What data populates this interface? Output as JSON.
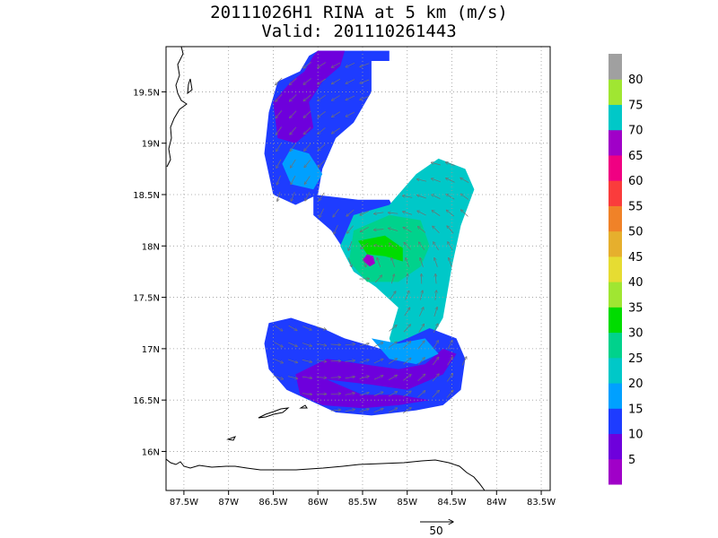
{
  "title_line_1": "20111026H1 RINA at 5 km (m/s)",
  "title_line_2": "Valid: 201110261443",
  "chart_data": {
    "type": "heatmap",
    "title": "20111026H1 RINA at 5 km (m/s)",
    "subtitle": "Valid: 201110261443",
    "x_ticks": [
      {
        "value": -87.5,
        "label": "87.5W"
      },
      {
        "value": -87.0,
        "label": "87W"
      },
      {
        "value": -86.5,
        "label": "86.5W"
      },
      {
        "value": -86.0,
        "label": "86W"
      },
      {
        "value": -85.5,
        "label": "85.5W"
      },
      {
        "value": -85.0,
        "label": "85W"
      },
      {
        "value": -84.5,
        "label": "84.5W"
      },
      {
        "value": -84.0,
        "label": "84W"
      },
      {
        "value": -83.5,
        "label": "83.5W"
      }
    ],
    "y_ticks": [
      {
        "value": 16.0,
        "label": "16N"
      },
      {
        "value": 16.5,
        "label": "16.5N"
      },
      {
        "value": 17.0,
        "label": "17N"
      },
      {
        "value": 17.5,
        "label": "17.5N"
      },
      {
        "value": 18.0,
        "label": "18N"
      },
      {
        "value": 18.5,
        "label": "18.5N"
      },
      {
        "value": 19.0,
        "label": "19N"
      },
      {
        "value": 19.5,
        "label": "19.5N"
      }
    ],
    "xlim": [
      -87.7,
      -83.4
    ],
    "ylim": [
      15.62,
      19.94
    ],
    "grid": true,
    "colorbar": {
      "levels": [
        {
          "color": "#a000c8",
          "label": "5"
        },
        {
          "color": "#6e00dc",
          "label": "10"
        },
        {
          "color": "#1e3cff",
          "label": "15"
        },
        {
          "color": "#00a0ff",
          "label": "20"
        },
        {
          "color": "#00c8c8",
          "label": "25"
        },
        {
          "color": "#00d28c",
          "label": "30"
        },
        {
          "color": "#00dc00",
          "label": "35"
        },
        {
          "color": "#a0e632",
          "label": "40"
        },
        {
          "color": "#e6dc32",
          "label": "45"
        },
        {
          "color": "#e6af2d",
          "label": "50"
        },
        {
          "color": "#f08228",
          "label": "55"
        },
        {
          "color": "#fa3c3c",
          "label": "60"
        },
        {
          "color": "#f00082",
          "label": "65"
        },
        {
          "color": "#a000c8",
          "label": "70"
        },
        {
          "color": "#00c8c8",
          "label": "75"
        },
        {
          "color": "#a0e632",
          "label": "80"
        },
        {
          "color": "#a0a0a0",
          "label": ""
        }
      ]
    },
    "reference_vector": {
      "value": 50,
      "label": "50",
      "units": "m/s"
    },
    "storm_center": {
      "lon": -85.42,
      "lat": 17.84
    },
    "regions": [
      {
        "name": "north-band",
        "level": 15,
        "poly": [
          [
            -86.0,
            19.9
          ],
          [
            -85.2,
            19.9
          ],
          [
            -85.2,
            19.8
          ],
          [
            -85.4,
            19.8
          ],
          [
            -85.4,
            19.5
          ],
          [
            -85.6,
            19.2
          ],
          [
            -85.8,
            19.05
          ],
          [
            -85.95,
            18.75
          ],
          [
            -86.0,
            18.5
          ],
          [
            -86.25,
            18.4
          ],
          [
            -86.5,
            18.5
          ],
          [
            -86.6,
            18.9
          ],
          [
            -86.55,
            19.3
          ],
          [
            -86.45,
            19.6
          ],
          [
            -86.2,
            19.7
          ],
          [
            -86.1,
            19.85
          ]
        ]
      },
      {
        "name": "north-band-low",
        "level": 10,
        "poly": [
          [
            -86.0,
            19.9
          ],
          [
            -85.7,
            19.9
          ],
          [
            -85.75,
            19.75
          ],
          [
            -85.95,
            19.6
          ],
          [
            -86.1,
            19.4
          ],
          [
            -86.05,
            19.15
          ],
          [
            -86.25,
            19.0
          ],
          [
            -86.45,
            19.05
          ],
          [
            -86.5,
            19.4
          ],
          [
            -86.3,
            19.6
          ],
          [
            -86.15,
            19.7
          ],
          [
            -86.05,
            19.85
          ]
        ]
      },
      {
        "name": "north-band-mid",
        "level": 20,
        "poly": [
          [
            -86.3,
            18.95
          ],
          [
            -86.1,
            18.9
          ],
          [
            -85.95,
            18.7
          ],
          [
            -86.05,
            18.55
          ],
          [
            -86.3,
            18.6
          ],
          [
            -86.4,
            18.8
          ]
        ]
      },
      {
        "name": "central-low",
        "level": 15,
        "poly": [
          [
            -86.05,
            18.5
          ],
          [
            -85.55,
            18.45
          ],
          [
            -85.2,
            18.45
          ],
          [
            -85.0,
            18.1
          ],
          [
            -85.2,
            17.65
          ],
          [
            -85.5,
            17.7
          ],
          [
            -85.7,
            17.95
          ],
          [
            -85.85,
            18.15
          ],
          [
            -86.05,
            18.3
          ]
        ]
      },
      {
        "name": "east-lobe",
        "level": 25,
        "poly": [
          [
            -85.6,
            18.3
          ],
          [
            -85.2,
            18.4
          ],
          [
            -84.9,
            18.7
          ],
          [
            -84.65,
            18.85
          ],
          [
            -84.35,
            18.75
          ],
          [
            -84.25,
            18.55
          ],
          [
            -84.4,
            18.2
          ],
          [
            -84.5,
            17.8
          ],
          [
            -84.6,
            17.3
          ],
          [
            -84.8,
            17.0
          ],
          [
            -85.1,
            16.85
          ],
          [
            -85.2,
            17.1
          ],
          [
            -85.1,
            17.4
          ],
          [
            -85.35,
            17.6
          ],
          [
            -85.6,
            17.75
          ],
          [
            -85.75,
            18.0
          ]
        ]
      },
      {
        "name": "east-inner",
        "level": 30,
        "poly": [
          [
            -85.6,
            18.15
          ],
          [
            -85.2,
            18.3
          ],
          [
            -84.85,
            18.25
          ],
          [
            -84.75,
            18.0
          ],
          [
            -84.85,
            17.8
          ],
          [
            -85.1,
            17.65
          ],
          [
            -85.45,
            17.65
          ],
          [
            -85.65,
            17.85
          ]
        ]
      },
      {
        "name": "eyewall",
        "level": 35,
        "poly": [
          [
            -85.55,
            18.05
          ],
          [
            -85.25,
            18.1
          ],
          [
            -85.05,
            17.98
          ],
          [
            -85.05,
            17.85
          ],
          [
            -85.25,
            17.9
          ],
          [
            -85.45,
            17.92
          ]
        ]
      },
      {
        "name": "south-band",
        "level": 15,
        "poly": [
          [
            -86.55,
            17.25
          ],
          [
            -86.3,
            17.3
          ],
          [
            -85.95,
            17.2
          ],
          [
            -85.7,
            17.1
          ],
          [
            -85.3,
            17.0
          ],
          [
            -85.0,
            17.1
          ],
          [
            -84.75,
            17.2
          ],
          [
            -84.45,
            17.1
          ],
          [
            -84.35,
            16.9
          ],
          [
            -84.4,
            16.6
          ],
          [
            -84.6,
            16.45
          ],
          [
            -84.9,
            16.4
          ],
          [
            -85.4,
            16.35
          ],
          [
            -85.8,
            16.38
          ],
          [
            -86.1,
            16.5
          ],
          [
            -86.35,
            16.6
          ],
          [
            -86.55,
            16.8
          ],
          [
            -86.6,
            17.05
          ]
        ]
      },
      {
        "name": "south-band-low",
        "level": 10,
        "poly": [
          [
            -85.9,
            16.7
          ],
          [
            -85.4,
            16.65
          ],
          [
            -85.0,
            16.6
          ],
          [
            -84.6,
            16.75
          ],
          [
            -84.45,
            16.95
          ],
          [
            -84.6,
            17.0
          ],
          [
            -84.8,
            16.85
          ],
          [
            -85.1,
            16.8
          ],
          [
            -85.5,
            16.85
          ],
          [
            -85.9,
            16.9
          ],
          [
            -86.25,
            16.75
          ],
          [
            -86.2,
            16.55
          ],
          [
            -85.95,
            16.45
          ],
          [
            -85.5,
            16.42
          ],
          [
            -85.1,
            16.45
          ],
          [
            -84.75,
            16.5
          ],
          [
            -85.1,
            16.55
          ],
          [
            -85.5,
            16.55
          ]
        ]
      },
      {
        "name": "south-band-mid",
        "level": 20,
        "poly": [
          [
            -85.4,
            17.1
          ],
          [
            -85.1,
            17.05
          ],
          [
            -84.8,
            17.1
          ],
          [
            -84.65,
            16.95
          ],
          [
            -84.9,
            16.85
          ],
          [
            -85.2,
            16.9
          ]
        ]
      },
      {
        "name": "eye",
        "level": 5,
        "poly": [
          [
            -85.5,
            17.86
          ],
          [
            -85.42,
            17.8
          ],
          [
            -85.36,
            17.83
          ],
          [
            -85.38,
            17.9
          ],
          [
            -85.45,
            17.92
          ]
        ]
      }
    ]
  }
}
